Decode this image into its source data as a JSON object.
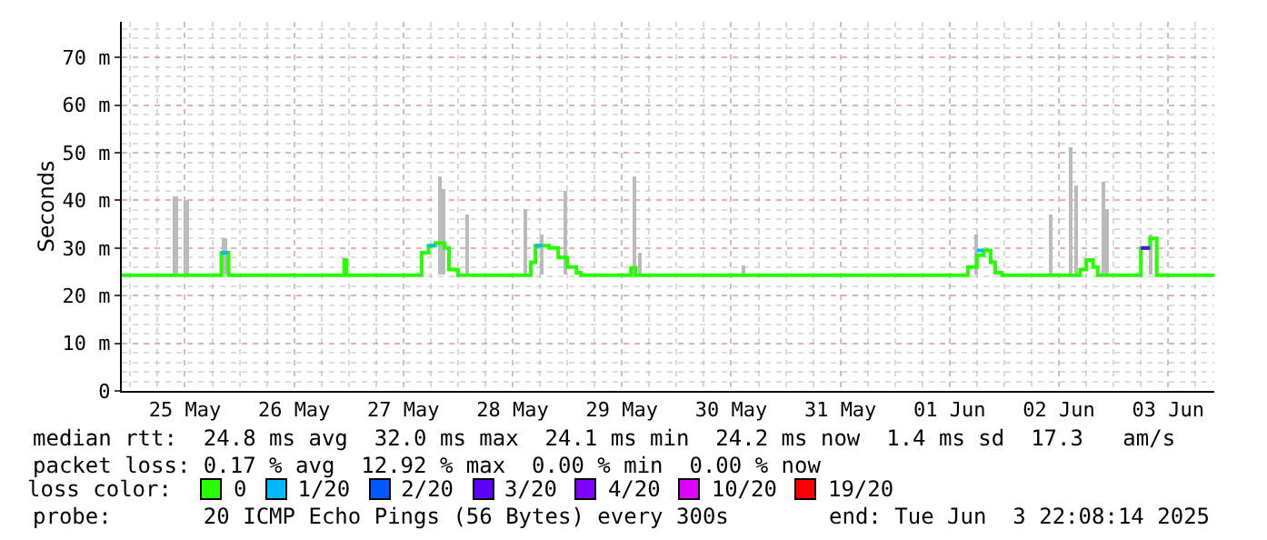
{
  "chart_data": {
    "type": "step",
    "ylabel": "Seconds",
    "legend_title": "loss color:",
    "legend": "bottom",
    "grid": true,
    "xlim": [
      "2025-05-24T22:08",
      "2025-06-03T22:08"
    ],
    "xticks": [
      {
        "value": "2025-05-25T12:00",
        "label": "25 May"
      },
      {
        "value": "2025-05-26T12:00",
        "label": "26 May"
      },
      {
        "value": "2025-05-27T12:00",
        "label": "27 May"
      },
      {
        "value": "2025-05-28T12:00",
        "label": "28 May"
      },
      {
        "value": "2025-05-29T12:00",
        "label": "29 May"
      },
      {
        "value": "2025-05-30T12:00",
        "label": "30 May"
      },
      {
        "value": "2025-05-31T12:00",
        "label": "31 May"
      },
      {
        "value": "2025-06-01T12:00",
        "label": "01 Jun"
      },
      {
        "value": "2025-06-02T12:00",
        "label": "02 Jun"
      },
      {
        "value": "2025-06-03T12:00",
        "label": "03 Jun"
      }
    ],
    "ylim": [
      0,
      77.5
    ],
    "yticks": [
      0,
      {
        "value": 10,
        "label": "10 m"
      },
      {
        "value": 20,
        "label": "20 m"
      },
      {
        "value": 30,
        "label": "30 m"
      },
      {
        "value": 40,
        "label": "40 m"
      },
      {
        "value": 50,
        "label": "50 m"
      },
      {
        "value": 60,
        "label": "60 m"
      },
      {
        "value": 70,
        "label": "70 m"
      }
    ],
    "series": [
      {
        "type": "bar",
        "color": "#bbbbbb",
        "x": [
          "2025-05-25T10:00",
          "2025-05-25T12:24",
          "2025-05-25T20:48",
          "2025-05-27T20:00",
          "2025-05-27T20:48",
          "2025-05-28T02:00",
          "2025-05-28T14:48",
          "2025-05-28T18:24",
          "2025-05-28T23:36",
          "2025-05-29T14:48",
          "2025-05-29T16:00",
          "2025-05-30T14:48",
          "2025-06-01T18:00",
          "2025-06-02T10:24",
          "2025-06-02T14:48",
          "2025-06-02T16:00",
          "2025-06-02T22:00",
          "2025-06-02T22:48",
          "2025-06-03T08:24"
        ],
        "base": [
          24.3,
          24.3,
          24.3,
          24.3,
          24.3,
          24.3,
          24.3,
          24.3,
          24.3,
          24.3,
          24.3,
          24.3,
          24.3,
          24.3,
          24.3,
          24.3,
          24.3,
          24.3,
          24.3
        ],
        "values": [
          16.7,
          15.7,
          7.7,
          20.7,
          18.2,
          12.7,
          13.7,
          8.7,
          17.7,
          20.7,
          4.7,
          2.2,
          8.7,
          12.7,
          26.7,
          18.7,
          19.7,
          13.7,
          8.7
        ]
      },
      {
        "name": "0",
        "color": "#26ff00",
        "x": [
          "2025-05-24T22:08",
          "2025-05-25T20:00",
          "2025-05-25T21:36",
          "2025-05-26T23:00",
          "2025-05-26T23:30",
          "2025-05-27T16:00",
          "2025-05-27T17:30",
          "2025-05-27T19:00",
          "2025-05-27T21:00",
          "2025-05-27T22:00",
          "2025-05-28T00:00",
          "2025-05-28T16:00",
          "2025-05-28T17:00",
          "2025-05-28T20:00",
          "2025-05-28T22:00",
          "2025-05-29T00:00",
          "2025-05-29T02:00",
          "2025-05-29T03:00",
          "2025-05-29T14:00",
          "2025-05-29T15:00",
          "2025-06-01T16:00",
          "2025-06-01T18:00",
          "2025-06-01T19:30",
          "2025-06-01T21:00",
          "2025-06-01T22:00",
          "2025-06-01T23:30",
          "2025-06-02T16:40",
          "2025-06-02T18:00",
          "2025-06-02T19:30",
          "2025-06-02T20:30",
          "2025-06-03T06:00",
          "2025-06-03T08:00",
          "2025-06-03T09:30",
          "2025-06-03T22:08"
        ],
        "values": [
          24.3,
          29,
          24.3,
          27.5,
          24.3,
          29,
          30.5,
          31,
          30,
          25.5,
          24.3,
          27,
          30.5,
          30,
          28,
          26,
          24.8,
          24.3,
          25.8,
          24.3,
          26,
          28.5,
          29.5,
          27,
          24.8,
          24.3,
          25.5,
          27.5,
          26,
          24.3,
          30,
          32,
          24.3,
          24.3
        ]
      },
      {
        "name": "1/20",
        "type": "line",
        "color": "#00b8ff",
        "x": [
          "2025-05-25T20:00",
          "2025-05-25T21:30",
          "2025-05-25T21:31",
          "2025-05-27T17:30",
          "2025-05-27T19:00",
          "2025-05-27T19:01",
          "2025-05-28T17:00",
          "2025-05-28T18:30",
          "2025-05-28T18:31",
          "2025-06-01T18:00",
          "2025-06-01T19:30"
        ],
        "values": [
          29,
          29,
          null,
          30.5,
          30.5,
          null,
          30.5,
          30.5,
          null,
          29.5,
          29.5
        ]
      },
      {
        "name": "2/20",
        "color": "#0059ff"
      },
      {
        "name": "3/20",
        "type": "line",
        "color": "#5e00ff",
        "x": [
          "2025-06-03T06:00",
          "2025-06-03T08:00"
        ],
        "values": [
          30,
          30
        ]
      },
      {
        "name": "4/20",
        "color": "#7e00ff"
      },
      {
        "name": "10/20",
        "color": "#dd00ff"
      },
      {
        "name": "19/20",
        "color": "#ff0000"
      }
    ],
    "annotations": [
      "median rtt:  24.8 ms avg  32.0 ms max  24.1 ms min  24.2 ms now  1.4 ms sd  17.3   am/s",
      "packet loss: 0.17 % avg  12.92 % max  0.00 % min  0.00 % now",
      "probe:       20 ICMP Echo Pings (56 Bytes) every 300s",
      "end: Tue Jun  3 22:08:14 2025"
    ]
  }
}
